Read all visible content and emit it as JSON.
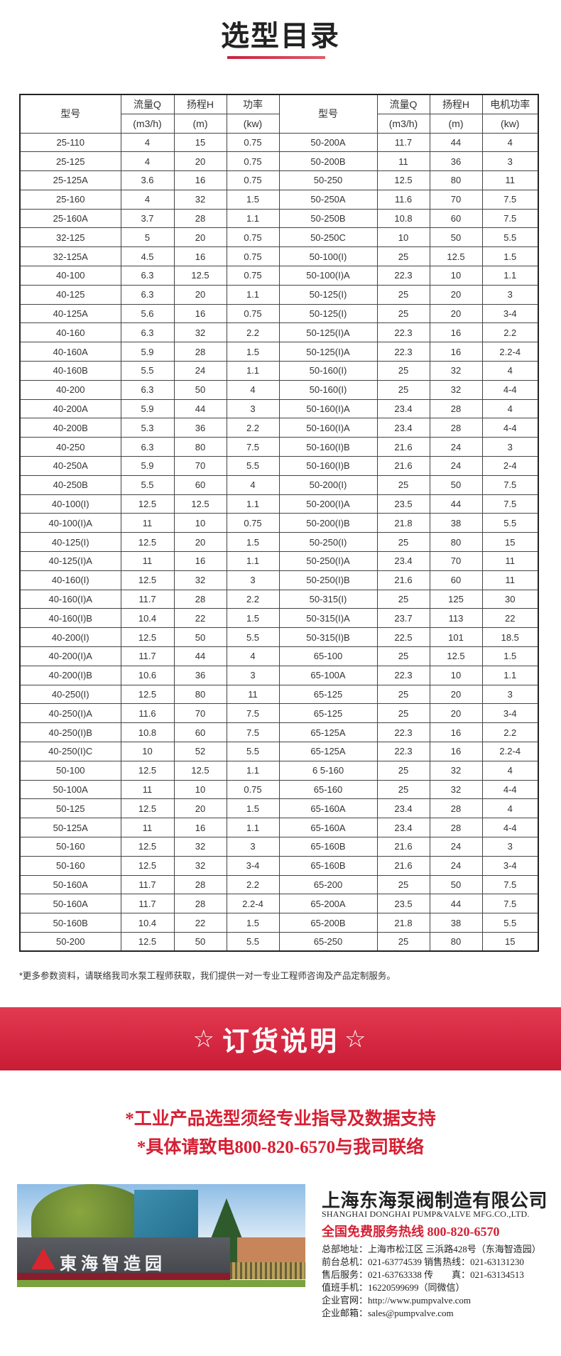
{
  "title": "选型目录",
  "table": {
    "headers": {
      "model": "型号",
      "flow": "流量Q",
      "head": "扬程H",
      "power": "功率",
      "motor_power": "电机功率",
      "flow_unit": "(m3/h)",
      "head_unit": "(m)",
      "power_unit": "(kw)"
    },
    "rows": [
      [
        "25-110",
        "4",
        "15",
        "0.75",
        "50-200A",
        "11.7",
        "44",
        "4"
      ],
      [
        "25-125",
        "4",
        "20",
        "0.75",
        "50-200B",
        "11",
        "36",
        "3"
      ],
      [
        "25-125A",
        "3.6",
        "16",
        "0.75",
        "50-250",
        "12.5",
        "80",
        "11"
      ],
      [
        "25-160",
        "4",
        "32",
        "1.5",
        "50-250A",
        "11.6",
        "70",
        "7.5"
      ],
      [
        "25-160A",
        "3.7",
        "28",
        "1.1",
        "50-250B",
        "10.8",
        "60",
        "7.5"
      ],
      [
        "32-125",
        "5",
        "20",
        "0.75",
        "50-250C",
        "10",
        "50",
        "5.5"
      ],
      [
        "32-125A",
        "4.5",
        "16",
        "0.75",
        "50-100(I)",
        "25",
        "12.5",
        "1.5"
      ],
      [
        "40-100",
        "6.3",
        "12.5",
        "0.75",
        "50-100(I)A",
        "22.3",
        "10",
        "1.1"
      ],
      [
        "40-125",
        "6.3",
        "20",
        "1.1",
        "50-125(I)",
        "25",
        "20",
        "3"
      ],
      [
        "40-125A",
        "5.6",
        "16",
        "0.75",
        "50-125(I)",
        "25",
        "20",
        "3-4"
      ],
      [
        "40-160",
        "6.3",
        "32",
        "2.2",
        "50-125(I)A",
        "22.3",
        "16",
        "2.2"
      ],
      [
        "40-160A",
        "5.9",
        "28",
        "1.5",
        "50-125(I)A",
        "22.3",
        "16",
        "2.2-4"
      ],
      [
        "40-160B",
        "5.5",
        "24",
        "1.1",
        "50-160(I)",
        "25",
        "32",
        "4"
      ],
      [
        "40-200",
        "6.3",
        "50",
        "4",
        "50-160(I)",
        "25",
        "32",
        "4-4"
      ],
      [
        "40-200A",
        "5.9",
        "44",
        "3",
        "50-160(I)A",
        "23.4",
        "28",
        "4"
      ],
      [
        "40-200B",
        "5.3",
        "36",
        "2.2",
        "50-160(I)A",
        "23.4",
        "28",
        "4-4"
      ],
      [
        "40-250",
        "6.3",
        "80",
        "7.5",
        "50-160(I)B",
        "21.6",
        "24",
        "3"
      ],
      [
        "40-250A",
        "5.9",
        "70",
        "5.5",
        "50-160(I)B",
        "21.6",
        "24",
        "2-4"
      ],
      [
        "40-250B",
        "5.5",
        "60",
        "4",
        "50-200(I)",
        "25",
        "50",
        "7.5"
      ],
      [
        "40-100(I)",
        "12.5",
        "12.5",
        "1.1",
        "50-200(I)A",
        "23.5",
        "44",
        "7.5"
      ],
      [
        "40-100(I)A",
        "11",
        "10",
        "0.75",
        "50-200(I)B",
        "21.8",
        "38",
        "5.5"
      ],
      [
        "40-125(I)",
        "12.5",
        "20",
        "1.5",
        "50-250(I)",
        "25",
        "80",
        "15"
      ],
      [
        "40-125(I)A",
        "11",
        "16",
        "1.1",
        "50-250(I)A",
        "23.4",
        "70",
        "11"
      ],
      [
        "40-160(I)",
        "12.5",
        "32",
        "3",
        "50-250(I)B",
        "21.6",
        "60",
        "11"
      ],
      [
        "40-160(I)A",
        "11.7",
        "28",
        "2.2",
        "50-315(I)",
        "25",
        "125",
        "30"
      ],
      [
        "40-160(I)B",
        "10.4",
        "22",
        "1.5",
        "50-315(I)A",
        "23.7",
        "113",
        "22"
      ],
      [
        "40-200(I)",
        "12.5",
        "50",
        "5.5",
        "50-315(I)B",
        "22.5",
        "101",
        "18.5"
      ],
      [
        "40-200(I)A",
        "11.7",
        "44",
        "4",
        "65-100",
        "25",
        "12.5",
        "1.5"
      ],
      [
        "40-200(I)B",
        "10.6",
        "36",
        "3",
        "65-100A",
        "22.3",
        "10",
        "1.1"
      ],
      [
        "40-250(I)",
        "12.5",
        "80",
        "11",
        "65-125",
        "25",
        "20",
        "3"
      ],
      [
        "40-250(I)A",
        "11.6",
        "70",
        "7.5",
        "65-125",
        "25",
        "20",
        "3-4"
      ],
      [
        "40-250(I)B",
        "10.8",
        "60",
        "7.5",
        "65-125A",
        "22.3",
        "16",
        "2.2"
      ],
      [
        "40-250(I)C",
        "10",
        "52",
        "5.5",
        "65-125A",
        "22.3",
        "16",
        "2.2-4"
      ],
      [
        "50-100",
        "12.5",
        "12.5",
        "1.1",
        "6 5-160",
        "25",
        "32",
        "4"
      ],
      [
        "50-100A",
        "11",
        "10",
        "0.75",
        "65-160",
        "25",
        "32",
        "4-4"
      ],
      [
        "50-125",
        "12.5",
        "20",
        "1.5",
        "65-160A",
        "23.4",
        "28",
        "4"
      ],
      [
        "50-125A",
        "11",
        "16",
        "1.1",
        "65-160A",
        "23.4",
        "28",
        "4-4"
      ],
      [
        "50-160",
        "12.5",
        "32",
        "3",
        "65-160B",
        "21.6",
        "24",
        "3"
      ],
      [
        "50-160",
        "12.5",
        "32",
        "3-4",
        "65-160B",
        "21.6",
        "24",
        "3-4"
      ],
      [
        "50-160A",
        "11.7",
        "28",
        "2.2",
        "65-200",
        "25",
        "50",
        "7.5"
      ],
      [
        "50-160A",
        "11.7",
        "28",
        "2.2-4",
        "65-200A",
        "23.5",
        "44",
        "7.5"
      ],
      [
        "50-160B",
        "10.4",
        "22",
        "1.5",
        "65-200B",
        "21.8",
        "38",
        "5.5"
      ],
      [
        "50-200",
        "12.5",
        "50",
        "5.5",
        "65-250",
        "25",
        "80",
        "15"
      ]
    ]
  },
  "note": "*更多参数资料，请联络我司水泵工程师获取，我们提供一对一专业工程师咨询及产品定制服务。",
  "banner": {
    "star": "☆",
    "title": "订货说明"
  },
  "order_notes": [
    "*工业产品选型须经专业指导及数据支持",
    "*具体请致电800-820-6570与我司联络"
  ],
  "photo": {
    "sign_text": "東海智造园"
  },
  "company": {
    "name": "上海东海泵阀制造有限公司",
    "name_en": "SHANGHAI DONGHAI PUMP&VALVE MFG.CO.,LTD.",
    "hotline": "全国免费服务热线  800-820-6570",
    "lines": [
      "总部地址：上海市松江区 三浜路428号（东海智造园）",
      "前台总机：021-63774539   销售热线：021-63131230",
      "售后服务：021-63763338   传　　真：021-63134513",
      "值班手机：16220599699（同微信）",
      "企业官网：http://www.pumpvalve.com",
      "企业邮箱：sales@pumpvalve.com"
    ]
  },
  "colors": {
    "accent": "#d61f33",
    "banner": "#d42640"
  }
}
